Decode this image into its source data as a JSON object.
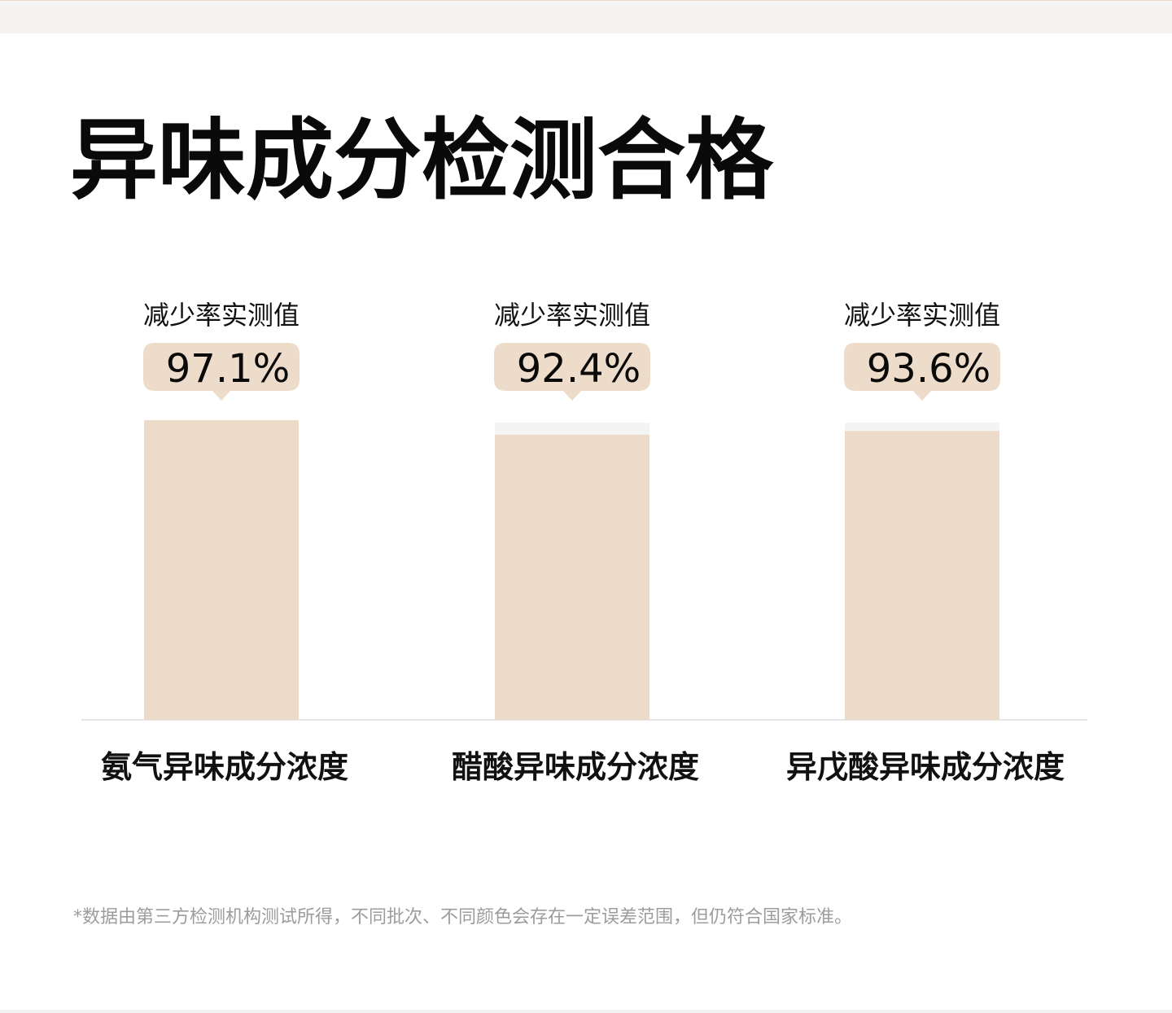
{
  "header": {
    "title": "异味成分检测合格"
  },
  "chart_data": {
    "type": "bar",
    "title": "异味成分检测合格",
    "categories": [
      "氨气异味成分浓度",
      "醋酸异味成分浓度",
      "异戊酸异味成分浓度"
    ],
    "series": [
      {
        "values": [
          97.1,
          92.4,
          93.6
        ]
      }
    ],
    "value_labels": [
      "97.1%",
      "92.4%",
      "93.6%"
    ],
    "label_caption": "减少率实测值",
    "ylim": [
      0,
      100
    ],
    "grid": false,
    "colors": {
      "bar_fill": "#ecdbc8",
      "bar_track": "#f5f4f4",
      "badge_fill": "#eddcc9",
      "baseline": "#e7e7e7",
      "text": "#111111"
    }
  },
  "footer": {
    "note": "*数据由第三方检测机构测试所得，不同批次、不同颜色会存在一定误差范围，但仍符合国家标准。"
  }
}
